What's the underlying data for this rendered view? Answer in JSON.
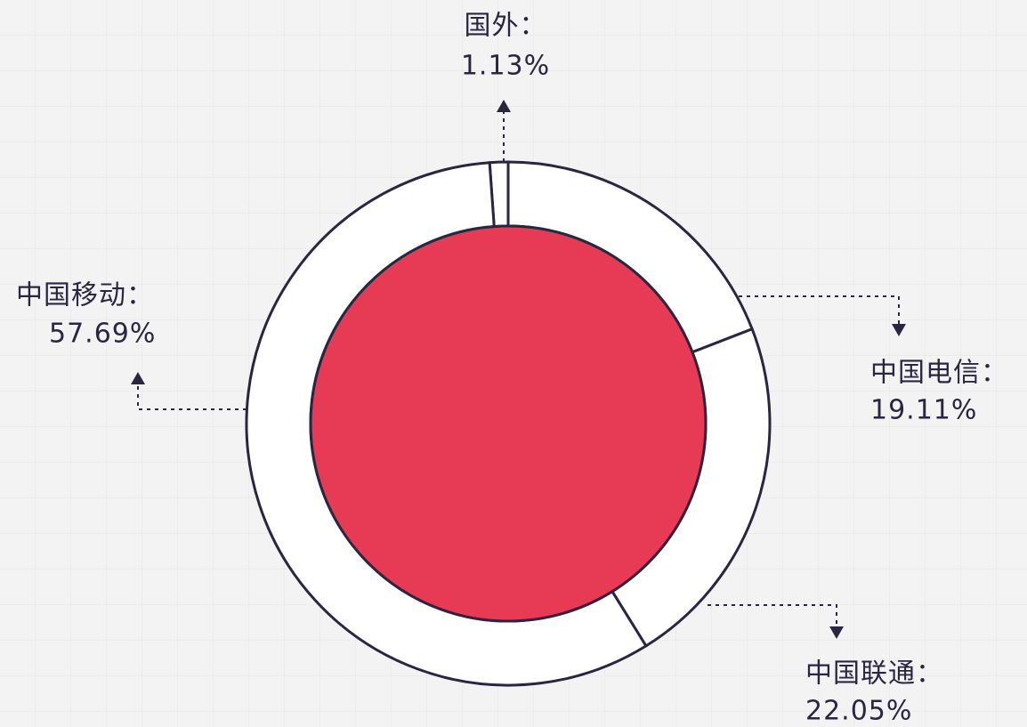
{
  "chart_data": {
    "type": "pie",
    "categories": [
      "国外：",
      "中国电信：",
      "中国联通：",
      "中国移动："
    ],
    "values": [
      1.13,
      19.11,
      22.05,
      57.69
    ],
    "value_labels": [
      "1.13%",
      "19.11%",
      "22.05%",
      "57.69%"
    ],
    "color": "#ffffff",
    "center_color": "#e63a55"
  }
}
